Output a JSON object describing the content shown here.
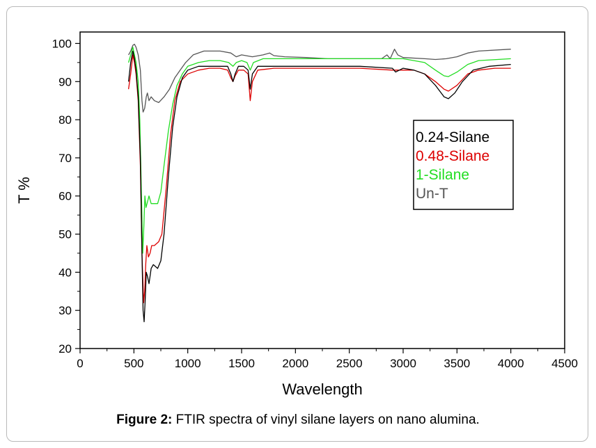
{
  "caption": {
    "label": "Figure 2:",
    "text": " FTIR spectra of vinyl silane layers on nano alumina."
  },
  "chart_data": {
    "type": "line",
    "title": "",
    "xlabel": "Wavelength",
    "ylabel": "T %",
    "xlim": [
      0,
      4500
    ],
    "ylim": [
      20,
      103
    ],
    "xticks": [
      0,
      500,
      1000,
      1500,
      2000,
      2500,
      3000,
      3500,
      4000,
      4500
    ],
    "yticks": [
      20,
      30,
      40,
      50,
      60,
      70,
      80,
      90,
      100
    ],
    "grid": false,
    "legend": "right",
    "series": [
      {
        "name": "0.24-Silane",
        "color": "#000000",
        "points": [
          [
            450,
            90
          ],
          [
            470,
            95
          ],
          [
            490,
            98
          ],
          [
            505,
            96
          ],
          [
            520,
            93
          ],
          [
            540,
            86
          ],
          [
            560,
            70
          ],
          [
            575,
            45
          ],
          [
            585,
            30
          ],
          [
            595,
            27
          ],
          [
            605,
            33
          ],
          [
            615,
            40
          ],
          [
            625,
            39
          ],
          [
            640,
            37
          ],
          [
            660,
            41
          ],
          [
            680,
            42
          ],
          [
            720,
            41
          ],
          [
            750,
            43
          ],
          [
            780,
            50
          ],
          [
            820,
            65
          ],
          [
            860,
            78
          ],
          [
            900,
            86
          ],
          [
            950,
            91
          ],
          [
            1000,
            93
          ],
          [
            1100,
            94
          ],
          [
            1200,
            94
          ],
          [
            1300,
            94
          ],
          [
            1370,
            94
          ],
          [
            1400,
            92
          ],
          [
            1420,
            90
          ],
          [
            1440,
            92
          ],
          [
            1470,
            94
          ],
          [
            1520,
            94
          ],
          [
            1560,
            93
          ],
          [
            1580,
            88
          ],
          [
            1600,
            92
          ],
          [
            1650,
            94
          ],
          [
            1800,
            94
          ],
          [
            2000,
            94
          ],
          [
            2300,
            94
          ],
          [
            2600,
            94
          ],
          [
            2900,
            93.5
          ],
          [
            2930,
            92.5
          ],
          [
            3000,
            93.5
          ],
          [
            3100,
            93
          ],
          [
            3200,
            92
          ],
          [
            3300,
            89
          ],
          [
            3380,
            86
          ],
          [
            3420,
            85.5
          ],
          [
            3480,
            87
          ],
          [
            3550,
            90
          ],
          [
            3650,
            93
          ],
          [
            3800,
            94
          ],
          [
            4000,
            94.5
          ]
        ]
      },
      {
        "name": "0.48-Silane",
        "color": "#dd0000",
        "points": [
          [
            450,
            88
          ],
          [
            470,
            92
          ],
          [
            490,
            97
          ],
          [
            505,
            95
          ],
          [
            520,
            92
          ],
          [
            540,
            85
          ],
          [
            560,
            68
          ],
          [
            575,
            45
          ],
          [
            590,
            32
          ],
          [
            600,
            35
          ],
          [
            610,
            42
          ],
          [
            620,
            47
          ],
          [
            635,
            44
          ],
          [
            650,
            45
          ],
          [
            665,
            47
          ],
          [
            690,
            47
          ],
          [
            730,
            48
          ],
          [
            760,
            50
          ],
          [
            800,
            62
          ],
          [
            840,
            76
          ],
          [
            880,
            85
          ],
          [
            930,
            90
          ],
          [
            1000,
            92
          ],
          [
            1100,
            93
          ],
          [
            1200,
            93.5
          ],
          [
            1300,
            93.5
          ],
          [
            1370,
            93
          ],
          [
            1400,
            91
          ],
          [
            1420,
            90
          ],
          [
            1440,
            91.5
          ],
          [
            1470,
            93
          ],
          [
            1520,
            93
          ],
          [
            1560,
            92
          ],
          [
            1580,
            85
          ],
          [
            1600,
            90
          ],
          [
            1650,
            93
          ],
          [
            1800,
            93.5
          ],
          [
            2000,
            93.5
          ],
          [
            2300,
            93.5
          ],
          [
            2600,
            93.5
          ],
          [
            2900,
            93
          ],
          [
            3000,
            93
          ],
          [
            3100,
            93
          ],
          [
            3200,
            92
          ],
          [
            3300,
            90
          ],
          [
            3380,
            88
          ],
          [
            3420,
            87.5
          ],
          [
            3500,
            89
          ],
          [
            3600,
            92
          ],
          [
            3700,
            93
          ],
          [
            3850,
            93.5
          ],
          [
            4000,
            93.5
          ]
        ]
      },
      {
        "name": "1-Silane",
        "color": "#22dd22",
        "points": [
          [
            450,
            95
          ],
          [
            470,
            97
          ],
          [
            490,
            99
          ],
          [
            505,
            97
          ],
          [
            520,
            95
          ],
          [
            540,
            90
          ],
          [
            555,
            80
          ],
          [
            570,
            60
          ],
          [
            582,
            45
          ],
          [
            592,
            52
          ],
          [
            602,
            60
          ],
          [
            612,
            57
          ],
          [
            622,
            58
          ],
          [
            640,
            60
          ],
          [
            660,
            58
          ],
          [
            690,
            58
          ],
          [
            720,
            58
          ],
          [
            750,
            61
          ],
          [
            780,
            68
          ],
          [
            820,
            77
          ],
          [
            860,
            84
          ],
          [
            900,
            89
          ],
          [
            950,
            92
          ],
          [
            1000,
            94
          ],
          [
            1100,
            95
          ],
          [
            1200,
            95.5
          ],
          [
            1300,
            95.5
          ],
          [
            1380,
            95
          ],
          [
            1420,
            94
          ],
          [
            1450,
            95
          ],
          [
            1500,
            95.5
          ],
          [
            1550,
            95
          ],
          [
            1580,
            93
          ],
          [
            1610,
            95
          ],
          [
            1700,
            96
          ],
          [
            2000,
            96
          ],
          [
            2300,
            96
          ],
          [
            2600,
            96
          ],
          [
            2900,
            96
          ],
          [
            3000,
            96
          ],
          [
            3100,
            95.5
          ],
          [
            3200,
            95
          ],
          [
            3300,
            93
          ],
          [
            3380,
            91.5
          ],
          [
            3420,
            91.3
          ],
          [
            3500,
            92.5
          ],
          [
            3600,
            94.5
          ],
          [
            3700,
            95.5
          ],
          [
            4000,
            96
          ]
        ]
      },
      {
        "name": "Un-T",
        "color": "#555555",
        "points": [
          [
            450,
            97
          ],
          [
            470,
            98
          ],
          [
            490,
            99.5
          ],
          [
            505,
            99.8
          ],
          [
            520,
            99
          ],
          [
            540,
            97
          ],
          [
            560,
            93
          ],
          [
            575,
            85
          ],
          [
            585,
            82
          ],
          [
            600,
            83
          ],
          [
            615,
            86
          ],
          [
            625,
            87
          ],
          [
            640,
            85
          ],
          [
            660,
            86
          ],
          [
            690,
            85
          ],
          [
            730,
            84.5
          ],
          [
            780,
            86
          ],
          [
            830,
            88
          ],
          [
            880,
            91
          ],
          [
            930,
            93
          ],
          [
            980,
            95
          ],
          [
            1050,
            97
          ],
          [
            1150,
            98
          ],
          [
            1300,
            98
          ],
          [
            1400,
            97.5
          ],
          [
            1450,
            96.5
          ],
          [
            1500,
            97
          ],
          [
            1600,
            96.5
          ],
          [
            1700,
            97
          ],
          [
            1760,
            97.5
          ],
          [
            1800,
            96.8
          ],
          [
            1900,
            96.5
          ],
          [
            2100,
            96.3
          ],
          [
            2300,
            96
          ],
          [
            2600,
            96
          ],
          [
            2800,
            96
          ],
          [
            2850,
            97
          ],
          [
            2880,
            96
          ],
          [
            2920,
            98.5
          ],
          [
            2950,
            97
          ],
          [
            3000,
            96.3
          ],
          [
            3200,
            96
          ],
          [
            3300,
            95.8
          ],
          [
            3400,
            96
          ],
          [
            3500,
            96.5
          ],
          [
            3600,
            97.5
          ],
          [
            3700,
            98
          ],
          [
            4000,
            98.5
          ]
        ]
      }
    ]
  }
}
